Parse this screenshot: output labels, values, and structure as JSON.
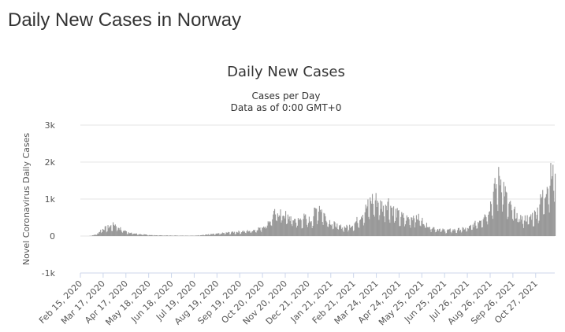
{
  "page": {
    "heading": "Daily New Cases in Norway"
  },
  "chart_data": {
    "type": "bar",
    "title": "Daily New Cases",
    "subtitle": "Cases per Day",
    "subtitle2": "Data as of 0:00 GMT+0",
    "ylabel": "Novel Coronavirus Daily Cases",
    "xlabel": "",
    "ylim": [
      -1000,
      3000
    ],
    "y_ticks": [
      -1000,
      0,
      1000,
      2000,
      3000
    ],
    "y_tick_labels": [
      "-1k",
      "0",
      "1k",
      "2k",
      "3k"
    ],
    "x_start": "2020-02-15",
    "x_end": "2021-11-22",
    "x_ticks": [
      "2020-02-15",
      "2020-03-17",
      "2020-04-17",
      "2020-05-18",
      "2020-06-18",
      "2020-07-19",
      "2020-08-19",
      "2020-09-19",
      "2020-10-20",
      "2020-11-20",
      "2020-12-21",
      "2021-01-21",
      "2021-02-21",
      "2021-03-24",
      "2021-04-24",
      "2021-05-25",
      "2021-06-25",
      "2021-07-26",
      "2021-08-26",
      "2021-09-26",
      "2021-10-27"
    ],
    "x_tick_labels": [
      "Feb 15, 2020",
      "Mar 17, 2020",
      "Apr 17, 2020",
      "May 18, 2020",
      "Jun 18, 2020",
      "Jul 19, 2020",
      "Aug 19, 2020",
      "Sep 19, 2020",
      "Oct 20, 2020",
      "Nov 20, 2020",
      "Dec 21, 2020",
      "Jan 21, 2021",
      "Feb 21, 2021",
      "Mar 24, 2021",
      "Apr 24, 2021",
      "May 25, 2021",
      "Jun 25, 2021",
      "Jul 26, 2021",
      "Aug 26, 2021",
      "Sep 26, 2021",
      "Oct 27, 2021"
    ],
    "grid": true,
    "bar_color": "#999999",
    "series": [
      {
        "values": [
          {
            "date": "2020-02-26",
            "value": 0
          },
          {
            "date": "2020-03-05",
            "value": 30
          },
          {
            "date": "2020-03-10",
            "value": 80
          },
          {
            "date": "2020-03-14",
            "value": 180
          },
          {
            "date": "2020-03-20",
            "value": 220
          },
          {
            "date": "2020-03-26",
            "value": 260
          },
          {
            "date": "2020-04-01",
            "value": 320
          },
          {
            "date": "2020-04-05",
            "value": 260
          },
          {
            "date": "2020-04-10",
            "value": 180
          },
          {
            "date": "2020-04-17",
            "value": 120
          },
          {
            "date": "2020-04-27",
            "value": 70
          },
          {
            "date": "2020-05-10",
            "value": 40
          },
          {
            "date": "2020-05-25",
            "value": 20
          },
          {
            "date": "2020-06-15",
            "value": 15
          },
          {
            "date": "2020-07-05",
            "value": 12
          },
          {
            "date": "2020-07-19",
            "value": 10
          },
          {
            "date": "2020-08-05",
            "value": 40
          },
          {
            "date": "2020-08-19",
            "value": 60
          },
          {
            "date": "2020-09-01",
            "value": 90
          },
          {
            "date": "2020-09-19",
            "value": 120
          },
          {
            "date": "2020-10-05",
            "value": 150
          },
          {
            "date": "2020-10-20",
            "value": 250
          },
          {
            "date": "2020-10-30",
            "value": 450
          },
          {
            "date": "2020-11-06",
            "value": 620
          },
          {
            "date": "2020-11-12",
            "value": 660
          },
          {
            "date": "2020-11-20",
            "value": 560
          },
          {
            "date": "2020-11-28",
            "value": 470
          },
          {
            "date": "2020-12-08",
            "value": 430
          },
          {
            "date": "2020-12-15",
            "value": 500
          },
          {
            "date": "2020-12-24",
            "value": 420
          },
          {
            "date": "2020-12-31",
            "value": 700
          },
          {
            "date": "2021-01-05",
            "value": 820
          },
          {
            "date": "2021-01-12",
            "value": 560
          },
          {
            "date": "2021-01-21",
            "value": 360
          },
          {
            "date": "2021-02-01",
            "value": 260
          },
          {
            "date": "2021-02-10",
            "value": 240
          },
          {
            "date": "2021-02-21",
            "value": 320
          },
          {
            "date": "2021-03-01",
            "value": 520
          },
          {
            "date": "2021-03-10",
            "value": 760
          },
          {
            "date": "2021-03-17",
            "value": 1000
          },
          {
            "date": "2021-03-24",
            "value": 980
          },
          {
            "date": "2021-04-01",
            "value": 820
          },
          {
            "date": "2021-04-08",
            "value": 950
          },
          {
            "date": "2021-04-15",
            "value": 720
          },
          {
            "date": "2021-04-24",
            "value": 560
          },
          {
            "date": "2021-05-05",
            "value": 480
          },
          {
            "date": "2021-05-15",
            "value": 560
          },
          {
            "date": "2021-05-25",
            "value": 420
          },
          {
            "date": "2021-06-05",
            "value": 260
          },
          {
            "date": "2021-06-15",
            "value": 190
          },
          {
            "date": "2021-06-25",
            "value": 160
          },
          {
            "date": "2021-07-10",
            "value": 170
          },
          {
            "date": "2021-07-26",
            "value": 210
          },
          {
            "date": "2021-08-05",
            "value": 330
          },
          {
            "date": "2021-08-15",
            "value": 520
          },
          {
            "date": "2021-08-22",
            "value": 680
          },
          {
            "date": "2021-08-28",
            "value": 1000
          },
          {
            "date": "2021-09-02",
            "value": 1350
          },
          {
            "date": "2021-09-07",
            "value": 1600
          },
          {
            "date": "2021-09-12",
            "value": 1450
          },
          {
            "date": "2021-09-18",
            "value": 900
          },
          {
            "date": "2021-09-26",
            "value": 680
          },
          {
            "date": "2021-10-05",
            "value": 500
          },
          {
            "date": "2021-10-15",
            "value": 480
          },
          {
            "date": "2021-10-27",
            "value": 620
          },
          {
            "date": "2021-11-05",
            "value": 1100
          },
          {
            "date": "2021-11-12",
            "value": 1450
          },
          {
            "date": "2021-11-18",
            "value": 1700
          },
          {
            "date": "2021-11-22",
            "value": 2050
          }
        ]
      }
    ]
  }
}
